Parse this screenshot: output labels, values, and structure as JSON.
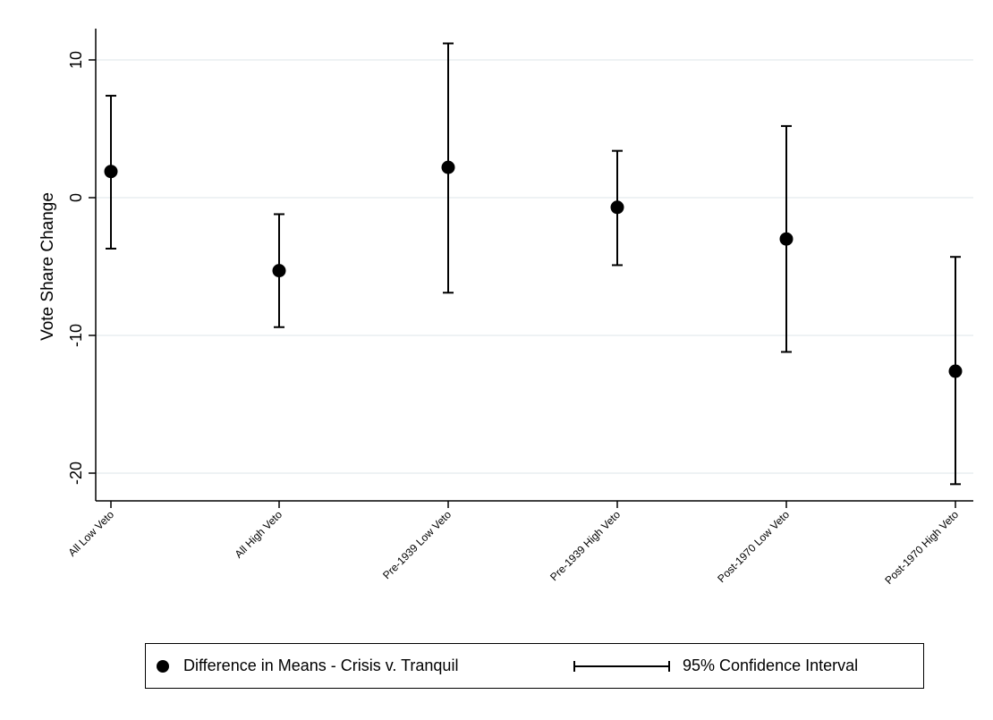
{
  "chart_data": {
    "type": "scatter",
    "title": "",
    "xlabel": "",
    "ylabel": "Vote Share Change",
    "ylim": [
      -22,
      12.5
    ],
    "yticks": [
      10,
      0,
      -10,
      -20
    ],
    "ytick_labels": [
      "10",
      "0",
      "-10",
      "-20"
    ],
    "grid": true,
    "categories": [
      "All Low Veto",
      "All High Veto",
      "Pre-1939 Low Veto",
      "Pre-1939 High Veto",
      "Post-1970 Low Veto",
      "Post-1970 High Veto"
    ],
    "series": [
      {
        "name": "Difference in Means - Crisis v. Tranquil",
        "values": [
          1.9,
          -5.3,
          2.2,
          -0.7,
          -3.0,
          -12.6
        ],
        "ci_low": [
          -3.7,
          -9.4,
          -6.9,
          -4.9,
          -11.2,
          -20.8
        ],
        "ci_high": [
          7.4,
          -1.2,
          11.2,
          3.4,
          5.2,
          -4.3
        ]
      }
    ],
    "legend": {
      "placement": "bottom",
      "items": [
        "Difference in Means - Crisis v. Tranquil",
        "95% Confidence Interval"
      ]
    },
    "colors": {
      "marker": "#000000",
      "grid": "#e8eef0",
      "axis": "#000000"
    }
  }
}
